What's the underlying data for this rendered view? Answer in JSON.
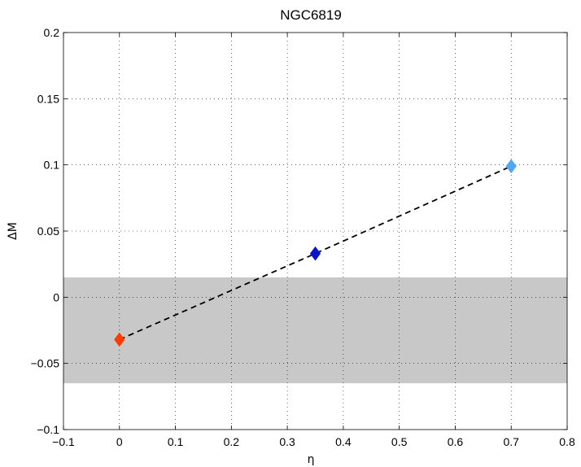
{
  "chart_data": {
    "type": "scatter",
    "title": "NGC6819",
    "xlabel": "η",
    "ylabel": "ΔM",
    "xlim": [
      -0.1,
      0.8
    ],
    "ylim": [
      -0.1,
      0.2
    ],
    "xticks": [
      -0.1,
      0,
      0.1,
      0.2,
      0.3,
      0.4,
      0.5,
      0.6,
      0.7,
      0.8
    ],
    "xtick_labels": [
      "−0.1",
      "0",
      "0.1",
      "0.2",
      "0.3",
      "0.4",
      "0.5",
      "0.6",
      "0.7",
      "0.8"
    ],
    "yticks": [
      -0.1,
      -0.05,
      0,
      0.05,
      0.1,
      0.15,
      0.2
    ],
    "ytick_labels": [
      "−0.1",
      "−0.05",
      "0",
      "0.05",
      "0.1",
      "0.15",
      "0.2"
    ],
    "grid": true,
    "shaded_band": {
      "y_range": [
        -0.065,
        0.015
      ],
      "color": "#c8c8c8"
    },
    "line": {
      "style": "dashed",
      "color": "#000000"
    },
    "points": [
      {
        "x": 0,
        "y": -0.032,
        "color": "#ff3c00",
        "marker": "diamond"
      },
      {
        "x": 0.35,
        "y": 0.033,
        "color": "#0a14cc",
        "marker": "diamond"
      },
      {
        "x": 0.7,
        "y": 0.099,
        "color": "#4ea8f5",
        "marker": "diamond"
      }
    ]
  }
}
